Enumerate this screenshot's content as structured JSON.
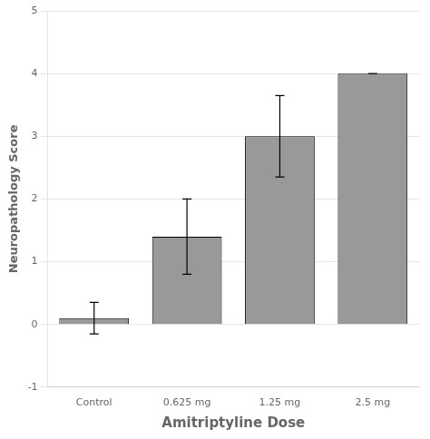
{
  "chart_data": {
    "type": "bar",
    "categories": [
      "Control",
      "0.625 mg",
      "1.25 mg",
      "2.5 mg"
    ],
    "values": [
      0.1,
      1.4,
      3.0,
      4.0
    ],
    "errors": [
      0.25,
      0.6,
      0.65,
      0.0
    ],
    "color": "#999999",
    "xlabel": "Amitriptyline Dose",
    "ylabel": "Neuropathology Score",
    "ylim": [
      -1,
      5
    ],
    "yticks": [
      -1,
      0,
      1,
      2,
      3,
      4,
      5
    ],
    "grid": true
  }
}
